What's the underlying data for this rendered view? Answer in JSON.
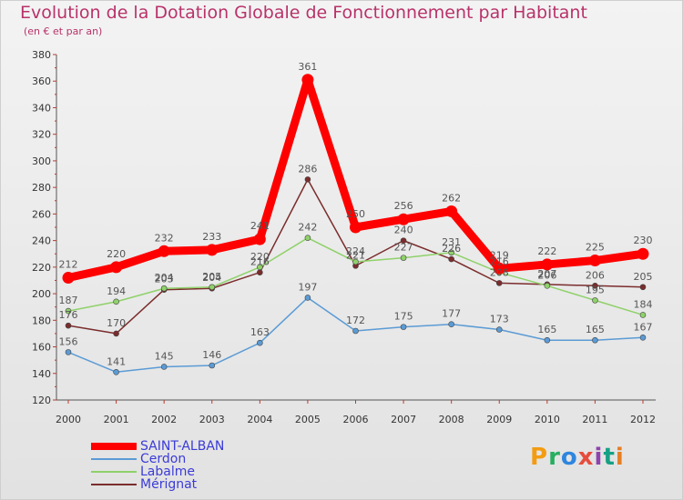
{
  "chart_data": {
    "type": "line",
    "title": "Evolution de la Dotation Globale de Fonctionnement par Habitant",
    "subtitle": "(en € et par an)",
    "x": [
      "2000",
      "2001",
      "2002",
      "2003",
      "2004",
      "2005",
      "2006",
      "2007",
      "2008",
      "2009",
      "2010",
      "2011",
      "2012"
    ],
    "ylim": [
      120,
      380
    ],
    "yticks": [
      "120",
      "140",
      "160",
      "180",
      "200",
      "220",
      "240",
      "260",
      "280",
      "300",
      "320",
      "340",
      "360",
      "380"
    ],
    "grid": false,
    "legend_position": "bottom-left",
    "series": [
      {
        "name": "SAINT-ALBAN",
        "color": "#ff0000",
        "values": [
          212,
          220,
          232,
          233,
          241,
          361,
          250,
          256,
          262,
          219,
          222,
          225,
          230
        ],
        "labels": [
          "212",
          "220",
          "232",
          "233",
          "241",
          "361",
          "250",
          "256",
          "262",
          "219",
          "222",
          "225",
          "230"
        ]
      },
      {
        "name": "Cerdon",
        "color": "#5b9bd5",
        "values": [
          156,
          141,
          145,
          146,
          163,
          197,
          172,
          175,
          177,
          173,
          165,
          165,
          167
        ],
        "labels": [
          "156",
          "141",
          "145",
          "146",
          "163",
          "197",
          "172",
          "175",
          "177",
          "173",
          "165",
          "165",
          "167"
        ]
      },
      {
        "name": "Labalme",
        "color": "#8fd16a",
        "values": [
          187,
          194,
          204,
          205,
          220,
          242,
          224,
          227,
          231,
          216,
          206,
          195,
          184
        ],
        "labels": [
          "187",
          "194",
          "204",
          "205",
          "220",
          "242",
          "224",
          "227",
          "231",
          "216",
          "206",
          "195",
          "184"
        ]
      },
      {
        "name": "Mérignat",
        "color": "#7b2c2c",
        "values": [
          176,
          170,
          203,
          204,
          216,
          286,
          221,
          240,
          226,
          208,
          207,
          206,
          205
        ],
        "labels": [
          "176",
          "170",
          "203",
          "204",
          "216",
          "286",
          "221",
          "240",
          "226",
          "208",
          "207",
          "206",
          "205"
        ]
      }
    ]
  }
}
